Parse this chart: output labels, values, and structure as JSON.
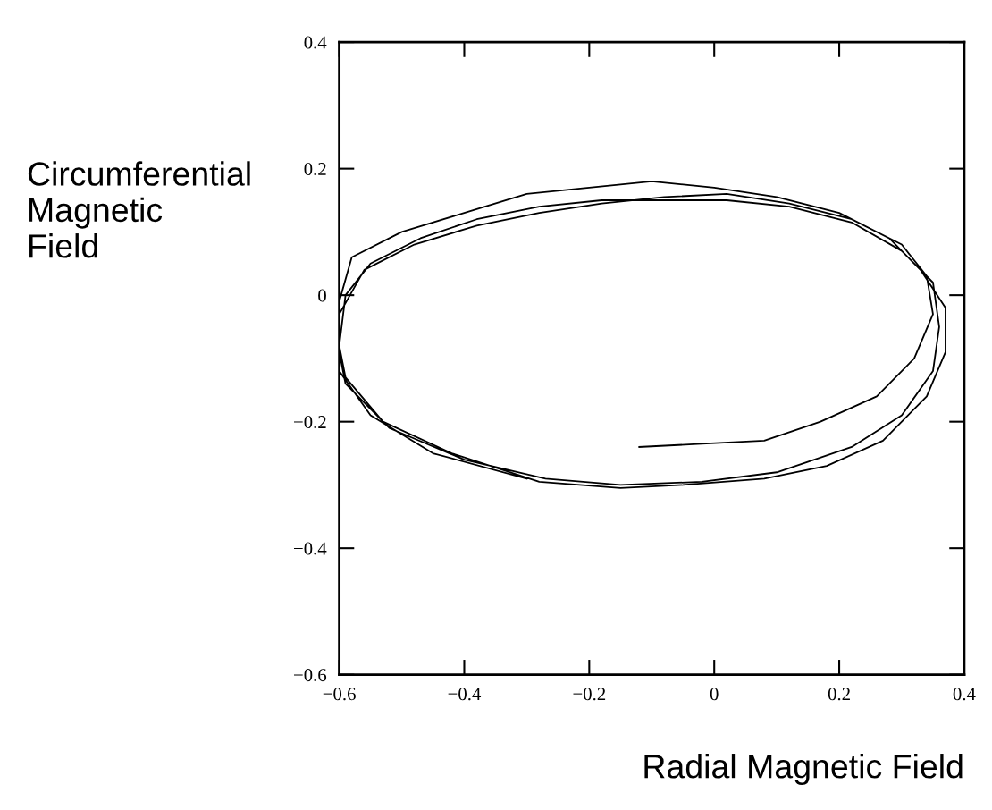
{
  "chart_data": {
    "type": "line",
    "xlabel": "Radial Magnetic Field",
    "ylabel": "Circumferential\nMagnetic\nField",
    "xlim": [
      -0.6,
      0.4
    ],
    "ylim": [
      -0.6,
      0.4
    ],
    "xticks": [
      {
        "value": -0.6,
        "label": "−0.6"
      },
      {
        "value": -0.4,
        "label": "−0.4"
      },
      {
        "value": -0.2,
        "label": "−0.2"
      },
      0,
      0.2,
      0.4
    ],
    "yticks": [
      {
        "value": -0.6,
        "label": "−0.6"
      },
      {
        "value": -0.4,
        "label": "−0.4"
      },
      {
        "value": -0.2,
        "label": "−0.2"
      },
      0,
      0.2,
      0.4
    ],
    "grid": false,
    "marker": "none",
    "series": [
      {
        "color": "#000000",
        "x": [
          -0.3,
          -0.45,
          -0.55,
          -0.6,
          -0.6,
          -0.6,
          -0.58,
          -0.5,
          -0.4,
          -0.3,
          -0.2,
          -0.1,
          0.0,
          0.1,
          0.2,
          0.28,
          0.33,
          0.37,
          0.37,
          0.34,
          0.27,
          0.18,
          0.08,
          -0.05,
          -0.15,
          -0.28,
          -0.42,
          -0.53,
          -0.59,
          -0.6,
          -0.59,
          -0.55,
          -0.47,
          -0.38,
          -0.28,
          -0.18,
          -0.08,
          0.02,
          0.12,
          0.22,
          0.3,
          0.35,
          0.36,
          0.35,
          0.3,
          0.22,
          0.1,
          -0.02,
          -0.15,
          -0.27,
          -0.4,
          -0.52,
          -0.59,
          -0.6,
          -0.6,
          -0.56,
          -0.48,
          -0.38,
          -0.28,
          -0.18,
          -0.08,
          0.02,
          0.12,
          0.22,
          0.3,
          0.34,
          0.35,
          0.32,
          0.26,
          0.17,
          0.08,
          -0.02,
          -0.12
        ],
        "values": [
          -0.29,
          -0.25,
          -0.19,
          -0.12,
          -0.07,
          -0.01,
          0.06,
          0.1,
          0.13,
          0.16,
          0.17,
          0.18,
          0.17,
          0.155,
          0.13,
          0.09,
          0.04,
          -0.02,
          -0.09,
          -0.16,
          -0.23,
          -0.27,
          -0.29,
          -0.3,
          -0.305,
          -0.295,
          -0.25,
          -0.2,
          -0.13,
          -0.08,
          0.0,
          0.05,
          0.09,
          0.12,
          0.14,
          0.15,
          0.15,
          0.15,
          0.14,
          0.115,
          0.07,
          0.02,
          -0.05,
          -0.12,
          -0.19,
          -0.24,
          -0.28,
          -0.295,
          -0.3,
          -0.29,
          -0.26,
          -0.21,
          -0.14,
          -0.09,
          -0.03,
          0.04,
          0.08,
          0.11,
          0.13,
          0.145,
          0.155,
          0.16,
          0.145,
          0.12,
          0.08,
          0.03,
          -0.03,
          -0.1,
          -0.16,
          -0.2,
          -0.23,
          -0.235,
          -0.24
        ]
      }
    ]
  }
}
